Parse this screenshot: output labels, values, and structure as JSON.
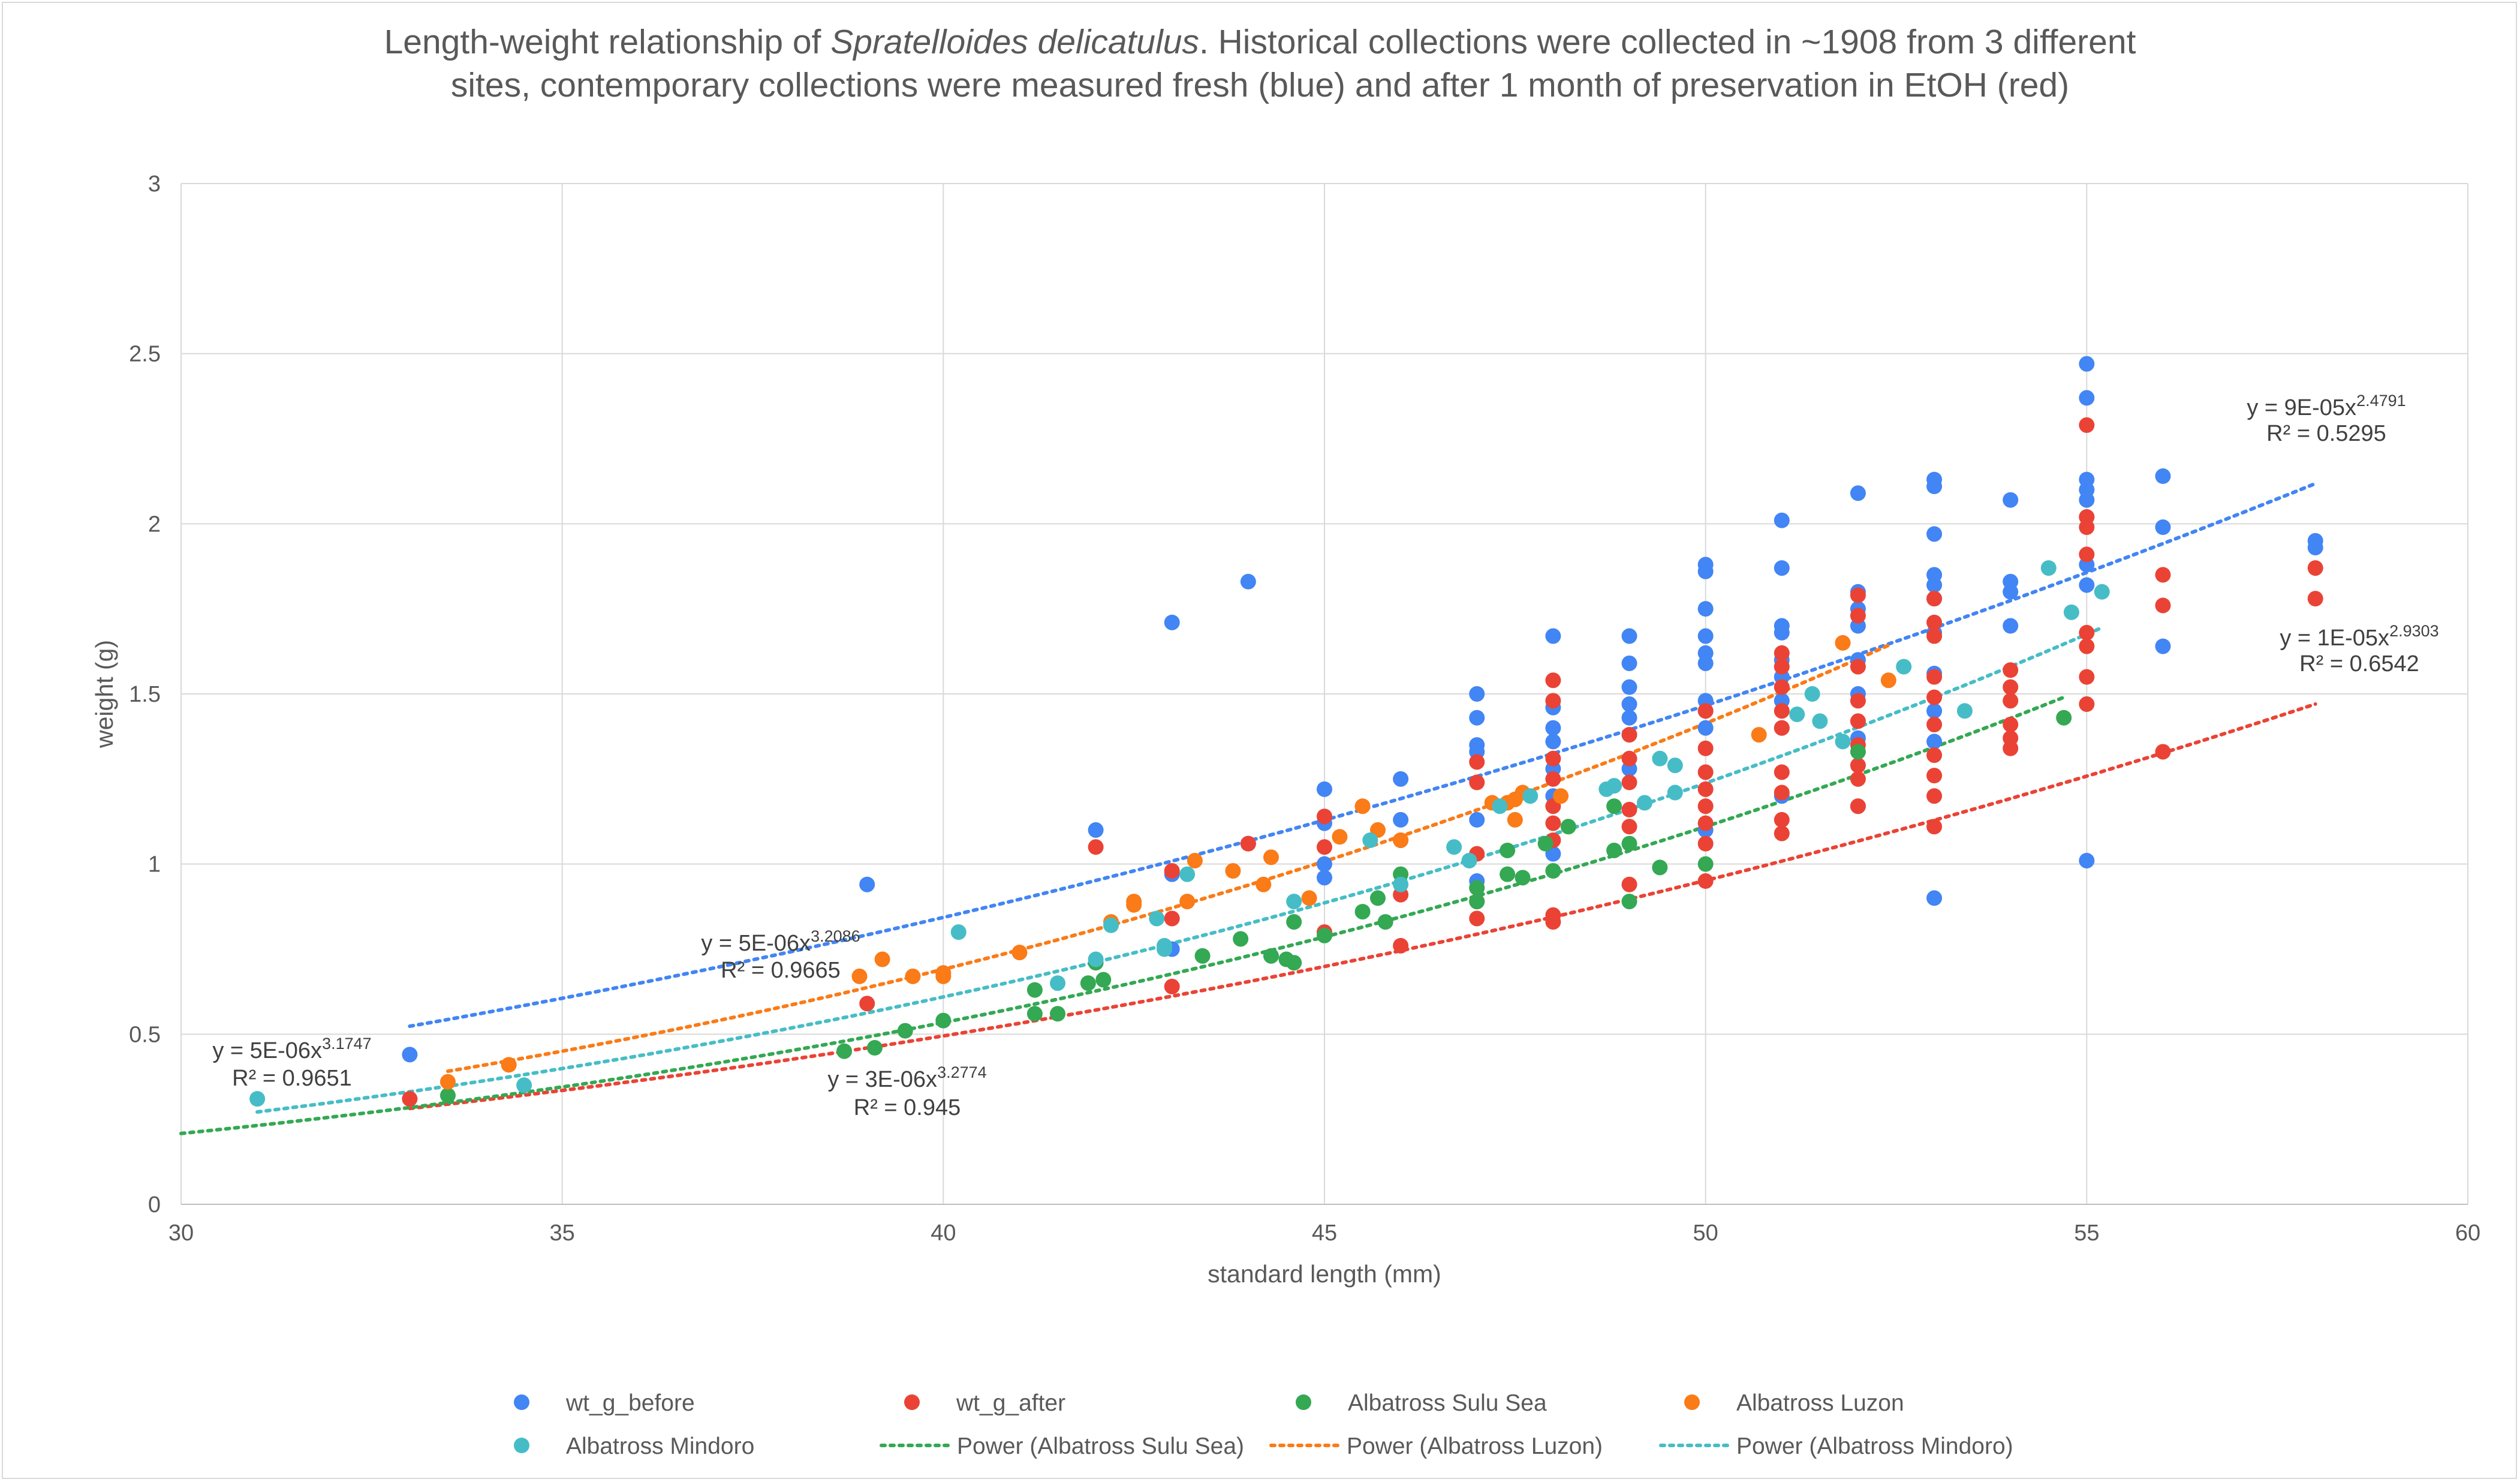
{
  "chart_data": {
    "type": "scatter",
    "title_line1_pre": "Length-weight relationship of ",
    "title_species": "Spratelloides delicatulus",
    "title_line1_post": ". Historical collections were collected in ~1908 from 3 different",
    "title_line2": "sites, contemporary collections were measured fresh (blue) and after 1 month of preservation in EtOH (red)",
    "xlabel": "standard length (mm)",
    "ylabel": "weight (g)",
    "xlim": [
      30,
      60
    ],
    "ylim": [
      0,
      3
    ],
    "xticks": [
      "30",
      "35",
      "40",
      "45",
      "50",
      "55",
      "60"
    ],
    "yticks": [
      "0",
      "0.5",
      "1",
      "1.5",
      "2",
      "2.5",
      "3"
    ],
    "grid": true,
    "legend_position": "bottom",
    "series": [
      {
        "name": "wt_g_before",
        "color": "#4285f4",
        "points": [
          [
            33,
            0.44
          ],
          [
            39,
            0.94
          ],
          [
            42,
            1.1
          ],
          [
            43,
            0.97
          ],
          [
            43,
            1.71
          ],
          [
            43,
            0.75
          ],
          [
            44,
            1.83
          ],
          [
            44,
            1.06
          ],
          [
            45,
            1.22
          ],
          [
            45,
            1.12
          ],
          [
            45,
            1.0
          ],
          [
            45,
            0.96
          ],
          [
            46,
            1.25
          ],
          [
            46,
            1.13
          ],
          [
            47,
            1.5
          ],
          [
            47,
            1.43
          ],
          [
            47,
            1.35
          ],
          [
            47,
            1.33
          ],
          [
            47,
            1.13
          ],
          [
            47,
            0.95
          ],
          [
            48,
            1.67
          ],
          [
            48,
            1.46
          ],
          [
            48,
            1.4
          ],
          [
            48,
            1.36
          ],
          [
            48,
            1.28
          ],
          [
            48,
            1.2
          ],
          [
            48,
            1.03
          ],
          [
            49,
            1.67
          ],
          [
            49,
            1.59
          ],
          [
            49,
            1.52
          ],
          [
            49,
            1.47
          ],
          [
            49,
            1.43
          ],
          [
            49,
            1.38
          ],
          [
            49,
            1.28
          ],
          [
            50,
            1.88
          ],
          [
            50,
            1.86
          ],
          [
            50,
            1.75
          ],
          [
            50,
            1.67
          ],
          [
            50,
            1.62
          ],
          [
            50,
            1.59
          ],
          [
            50,
            1.48
          ],
          [
            50,
            1.45
          ],
          [
            50,
            1.4
          ],
          [
            50,
            1.1
          ],
          [
            51,
            2.01
          ],
          [
            51,
            1.87
          ],
          [
            51,
            1.7
          ],
          [
            51,
            1.68
          ],
          [
            51,
            1.6
          ],
          [
            51,
            1.55
          ],
          [
            51,
            1.48
          ],
          [
            51,
            1.4
          ],
          [
            51,
            1.2
          ],
          [
            52,
            2.09
          ],
          [
            52,
            1.8
          ],
          [
            52,
            1.75
          ],
          [
            52,
            1.7
          ],
          [
            52,
            1.6
          ],
          [
            52,
            1.5
          ],
          [
            52,
            1.37
          ],
          [
            52,
            1.17
          ],
          [
            53,
            2.13
          ],
          [
            53,
            2.11
          ],
          [
            53,
            1.97
          ],
          [
            53,
            1.85
          ],
          [
            53,
            1.82
          ],
          [
            53,
            1.78
          ],
          [
            53,
            1.68
          ],
          [
            53,
            1.56
          ],
          [
            53,
            1.45
          ],
          [
            53,
            1.36
          ],
          [
            53,
            0.9
          ],
          [
            54,
            2.07
          ],
          [
            54,
            1.83
          ],
          [
            54,
            1.8
          ],
          [
            54,
            1.7
          ],
          [
            55,
            2.47
          ],
          [
            55,
            2.37
          ],
          [
            55,
            2.13
          ],
          [
            55,
            2.1
          ],
          [
            55,
            2.07
          ],
          [
            55,
            2.02
          ],
          [
            55,
            1.88
          ],
          [
            55,
            1.82
          ],
          [
            55,
            1.01
          ],
          [
            56,
            2.14
          ],
          [
            56,
            1.99
          ],
          [
            56,
            1.64
          ],
          [
            58,
            1.95
          ],
          [
            58,
            1.93
          ]
        ]
      },
      {
        "name": "wt_g_after",
        "color": "#ea4335",
        "points": [
          [
            33,
            0.31
          ],
          [
            39,
            0.59
          ],
          [
            42,
            1.05
          ],
          [
            43,
            0.98
          ],
          [
            43,
            0.84
          ],
          [
            43,
            0.64
          ],
          [
            44,
            1.06
          ],
          [
            45,
            1.14
          ],
          [
            45,
            1.05
          ],
          [
            45,
            0.8
          ],
          [
            46,
            1.07
          ],
          [
            46,
            0.91
          ],
          [
            46,
            0.76
          ],
          [
            47,
            1.3
          ],
          [
            47,
            1.24
          ],
          [
            47,
            1.03
          ],
          [
            47,
            0.89
          ],
          [
            47,
            0.84
          ],
          [
            48,
            1.54
          ],
          [
            48,
            1.48
          ],
          [
            48,
            1.31
          ],
          [
            48,
            1.25
          ],
          [
            48,
            1.17
          ],
          [
            48,
            1.12
          ],
          [
            48,
            1.07
          ],
          [
            48,
            0.85
          ],
          [
            48,
            0.83
          ],
          [
            49,
            1.38
          ],
          [
            49,
            1.31
          ],
          [
            49,
            1.24
          ],
          [
            49,
            1.16
          ],
          [
            49,
            1.11
          ],
          [
            49,
            0.94
          ],
          [
            50,
            1.45
          ],
          [
            50,
            1.34
          ],
          [
            50,
            1.27
          ],
          [
            50,
            1.22
          ],
          [
            50,
            1.17
          ],
          [
            50,
            1.12
          ],
          [
            50,
            1.06
          ],
          [
            50,
            0.95
          ],
          [
            51,
            1.62
          ],
          [
            51,
            1.58
          ],
          [
            51,
            1.52
          ],
          [
            51,
            1.45
          ],
          [
            51,
            1.4
          ],
          [
            51,
            1.27
          ],
          [
            51,
            1.21
          ],
          [
            51,
            1.13
          ],
          [
            51,
            1.09
          ],
          [
            52,
            1.79
          ],
          [
            52,
            1.73
          ],
          [
            52,
            1.58
          ],
          [
            52,
            1.48
          ],
          [
            52,
            1.42
          ],
          [
            52,
            1.35
          ],
          [
            52,
            1.29
          ],
          [
            52,
            1.25
          ],
          [
            52,
            1.17
          ],
          [
            53,
            1.78
          ],
          [
            53,
            1.71
          ],
          [
            53,
            1.67
          ],
          [
            53,
            1.55
          ],
          [
            53,
            1.49
          ],
          [
            53,
            1.41
          ],
          [
            53,
            1.32
          ],
          [
            53,
            1.26
          ],
          [
            53,
            1.2
          ],
          [
            53,
            1.11
          ],
          [
            54,
            1.57
          ],
          [
            54,
            1.52
          ],
          [
            54,
            1.48
          ],
          [
            54,
            1.41
          ],
          [
            54,
            1.37
          ],
          [
            54,
            1.34
          ],
          [
            55,
            2.29
          ],
          [
            55,
            2.02
          ],
          [
            55,
            1.99
          ],
          [
            55,
            1.91
          ],
          [
            55,
            1.68
          ],
          [
            55,
            1.64
          ],
          [
            55,
            1.55
          ],
          [
            55,
            1.47
          ],
          [
            56,
            1.85
          ],
          [
            56,
            1.76
          ],
          [
            56,
            1.33
          ],
          [
            58,
            1.87
          ],
          [
            58,
            1.78
          ]
        ]
      },
      {
        "name": "Albatross Sulu Sea",
        "color": "#34a853",
        "points": [
          [
            33.5,
            0.32
          ],
          [
            38.7,
            0.45
          ],
          [
            39.1,
            0.46
          ],
          [
            39.5,
            0.51
          ],
          [
            40,
            0.54
          ],
          [
            41.2,
            0.56
          ],
          [
            41.2,
            0.63
          ],
          [
            41.5,
            0.56
          ],
          [
            41.9,
            0.65
          ],
          [
            42.1,
            0.66
          ],
          [
            42,
            0.71
          ],
          [
            43.4,
            0.73
          ],
          [
            43.9,
            0.78
          ],
          [
            44.3,
            0.73
          ],
          [
            44.5,
            0.72
          ],
          [
            44.6,
            0.83
          ],
          [
            44.6,
            0.71
          ],
          [
            45,
            0.79
          ],
          [
            45.5,
            0.86
          ],
          [
            45.7,
            0.9
          ],
          [
            45.8,
            0.83
          ],
          [
            46,
            0.97
          ],
          [
            47,
            0.89
          ],
          [
            47,
            0.93
          ],
          [
            47.4,
            1.04
          ],
          [
            47.4,
            0.97
          ],
          [
            47.6,
            0.96
          ],
          [
            47.9,
            1.06
          ],
          [
            48,
            0.98
          ],
          [
            48.2,
            1.11
          ],
          [
            48.8,
            1.17
          ],
          [
            48.8,
            1.04
          ],
          [
            49,
            1.06
          ],
          [
            49,
            0.89
          ],
          [
            49.4,
            0.99
          ],
          [
            50,
            1.0
          ],
          [
            52,
            1.33
          ],
          [
            54.7,
            1.43
          ]
        ]
      },
      {
        "name": "Albatross Luzon",
        "color": "#fa7b17",
        "points": [
          [
            33.5,
            0.36
          ],
          [
            34.3,
            0.41
          ],
          [
            38.9,
            0.67
          ],
          [
            39.2,
            0.72
          ],
          [
            39.6,
            0.67
          ],
          [
            40,
            0.67
          ],
          [
            40,
            0.68
          ],
          [
            41,
            0.74
          ],
          [
            42.2,
            0.83
          ],
          [
            42.5,
            0.89
          ],
          [
            42.5,
            0.88
          ],
          [
            43.2,
            0.89
          ],
          [
            43.3,
            1.01
          ],
          [
            43.8,
            0.98
          ],
          [
            44.2,
            0.94
          ],
          [
            44.3,
            1.02
          ],
          [
            44.8,
            0.9
          ],
          [
            45.2,
            1.08
          ],
          [
            45.5,
            1.17
          ],
          [
            45.7,
            1.1
          ],
          [
            46,
            1.07
          ],
          [
            47.2,
            1.18
          ],
          [
            47.4,
            1.18
          ],
          [
            47.5,
            1.13
          ],
          [
            47.5,
            1.19
          ],
          [
            47.6,
            1.21
          ],
          [
            48.1,
            1.2
          ],
          [
            50.7,
            1.38
          ],
          [
            51.8,
            1.65
          ],
          [
            52.4,
            1.54
          ]
        ]
      },
      {
        "name": "Albatross Mindoro",
        "color": "#46bdc6",
        "points": [
          [
            31,
            0.31
          ],
          [
            34.5,
            0.35
          ],
          [
            40.2,
            0.8
          ],
          [
            41.5,
            0.65
          ],
          [
            42,
            0.72
          ],
          [
            42.2,
            0.82
          ],
          [
            42.8,
            0.84
          ],
          [
            42.9,
            0.75
          ],
          [
            42.9,
            0.76
          ],
          [
            43.2,
            0.97
          ],
          [
            44.6,
            0.89
          ],
          [
            45.6,
            1.07
          ],
          [
            46,
            0.94
          ],
          [
            46.7,
            1.05
          ],
          [
            46.9,
            1.01
          ],
          [
            47.3,
            1.17
          ],
          [
            47.7,
            1.2
          ],
          [
            48.7,
            1.22
          ],
          [
            48.8,
            1.23
          ],
          [
            49.2,
            1.18
          ],
          [
            49.4,
            1.31
          ],
          [
            49.6,
            1.29
          ],
          [
            49.6,
            1.21
          ],
          [
            51.2,
            1.44
          ],
          [
            51.4,
            1.5
          ],
          [
            51.5,
            1.42
          ],
          [
            51.8,
            1.36
          ],
          [
            52.6,
            1.58
          ],
          [
            53.4,
            1.45
          ],
          [
            54.5,
            1.87
          ],
          [
            54.8,
            1.74
          ],
          [
            55.2,
            1.8
          ]
        ]
      }
    ],
    "trendlines": [
      {
        "name": "Power (wt_g_before)",
        "color": "#4285f4",
        "a": 9e-05,
        "b": 2.4791,
        "x_range": [
          33,
          58
        ],
        "in_legend": false,
        "eq_base": "y = 9E-05x",
        "eq_exp": "2.4791",
        "r2_text": "R² = 0.5295"
      },
      {
        "name": "Power (wt_g_after)",
        "color": "#ea4335",
        "a": 1e-05,
        "b": 2.9303,
        "x_range": [
          33,
          58
        ],
        "in_legend": false,
        "eq_base": "y = 1E-05x",
        "eq_exp": "2.9303",
        "r2_text": "R² = 0.6542"
      },
      {
        "name": "Power (Albatross Sulu Sea)",
        "color": "#34a853",
        "a": 3e-06,
        "b": 3.2774,
        "x_range": [
          30,
          54.7
        ],
        "in_legend": true,
        "eq_base": "y = 3E-06x",
        "eq_exp": "3.2774",
        "r2_text": "R² = 0.945"
      },
      {
        "name": "Power (Albatross Luzon)",
        "color": "#fa7b17",
        "a": 5e-06,
        "b": 3.2086,
        "x_range": [
          33.5,
          52.4
        ],
        "in_legend": true,
        "eq_base": "y = 5E-06x",
        "eq_exp": "3.2086",
        "r2_text": "R² = 0.9665"
      },
      {
        "name": "Power (Albatross Mindoro)",
        "color": "#46bdc6",
        "a": 5e-06,
        "b": 3.1747,
        "x_range": [
          31,
          55.2
        ],
        "in_legend": true,
        "eq_base": "y = 5E-06x",
        "eq_exp": "3.1747",
        "r2_text": "R² = 0.9651"
      }
    ]
  }
}
